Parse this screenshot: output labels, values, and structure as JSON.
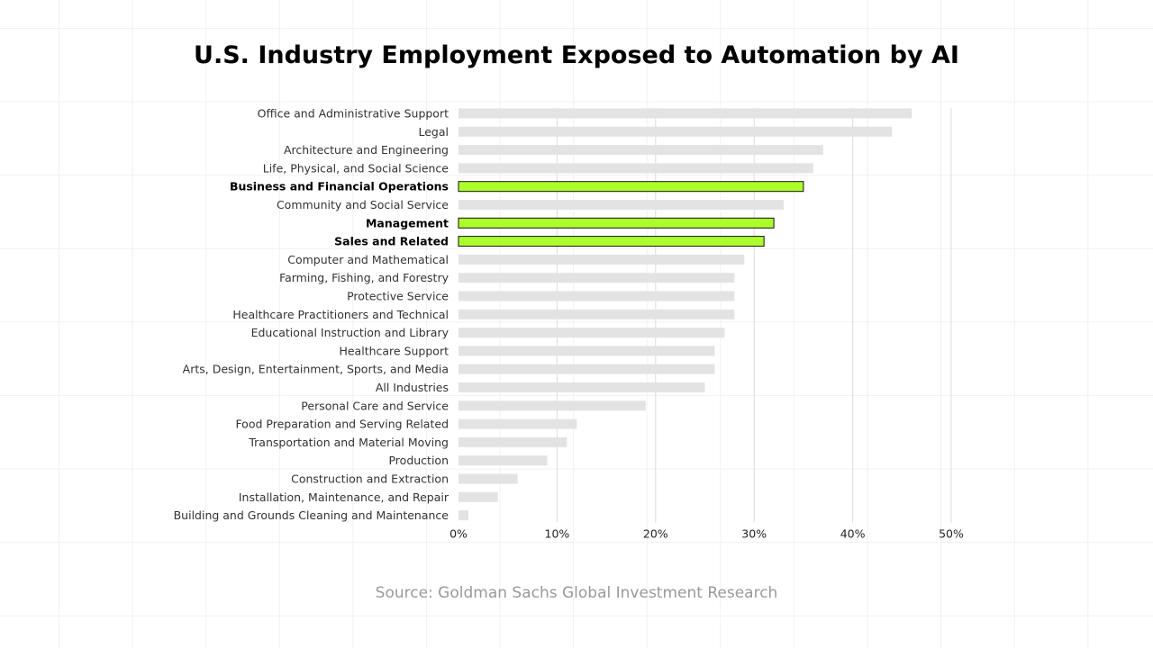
{
  "title": "U.S. Industry Employment Exposed to Automation by AI",
  "source": "Source: Goldman Sachs Global Investment Research",
  "colors": {
    "bar_default": "#e3e3e3",
    "bar_highlight": "#adfc2c",
    "bar_highlight_stroke": "#111111",
    "gridline": "#dcdcdc"
  },
  "chart_data": {
    "type": "bar",
    "orientation": "horizontal",
    "title": "U.S. Industry Employment Exposed to Automation by AI",
    "xlabel": "",
    "ylabel": "",
    "xlim": [
      0,
      50
    ],
    "x_ticks": [
      0,
      10,
      20,
      30,
      40,
      50
    ],
    "x_tick_labels": [
      "0%",
      "10%",
      "20%",
      "30%",
      "40%",
      "50%"
    ],
    "grid": "vertical",
    "legend": "none",
    "categories": [
      "Office and Administrative Support",
      "Legal",
      "Architecture and Engineering",
      "Life, Physical, and Social Science",
      "Business and Financial Operations",
      "Community and Social Service",
      "Management",
      "Sales and Related",
      "Computer and Mathematical",
      "Farming, Fishing, and Forestry",
      "Protective Service",
      "Healthcare Practitioners and Technical",
      "Educational Instruction and Library",
      "Healthcare Support",
      "Arts, Design, Entertainment, Sports, and Media",
      "All Industries",
      "Personal Care and Service",
      "Food Preparation and Serving Related",
      "Transportation and Material Moving",
      "Production",
      "Construction and Extraction",
      "Installation, Maintenance, and Repair",
      "Building and Grounds Cleaning and Maintenance"
    ],
    "values": [
      46,
      44,
      37,
      36,
      35,
      33,
      32,
      31,
      29,
      28,
      28,
      28,
      27,
      26,
      26,
      25,
      19,
      12,
      11,
      9,
      6,
      4,
      1
    ],
    "highlighted": [
      "Business and Financial Operations",
      "Management",
      "Sales and Related"
    ]
  }
}
